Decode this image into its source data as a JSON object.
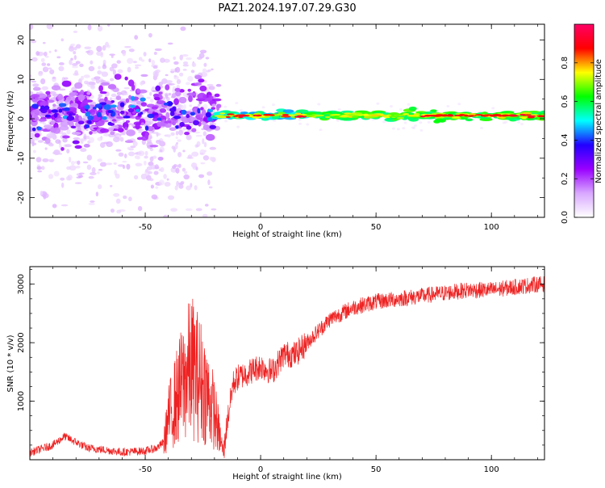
{
  "figure": {
    "title": "PAZ1.2024.197.07.29.G30"
  },
  "chart_data": [
    {
      "type": "heatmap",
      "title": "",
      "xlabel": "Height of straight line (km)",
      "ylabel": "Frequency (Hz)",
      "xlim": [
        -100,
        123
      ],
      "ylim": [
        -25,
        24
      ],
      "xticks": [
        -50,
        0,
        50,
        100
      ],
      "yticks": [
        -20,
        -10,
        0,
        10,
        20
      ],
      "grid": false,
      "colorbar": {
        "label": "Normalized spectral amplitude",
        "range": [
          0,
          1
        ],
        "ticks": [
          0.0,
          0.2,
          0.4,
          0.6,
          0.8
        ],
        "tick_labels": [
          "0.0",
          "0.2",
          "0.4",
          "0.6",
          "0.8"
        ],
        "colors": [
          "#ffffff",
          "#d9a8ff",
          "#9900ff",
          "#2200ff",
          "#00ffff",
          "#00ff00",
          "#ffff00",
          "#ff0000",
          "#ff0066"
        ]
      },
      "regions": [
        {
          "name": "",
          "x": [
            -100,
            -20
          ],
          "frequency_center": [
            -5,
            5
          ],
          "amplitude": [
            0.05,
            0.45
          ],
          "note": "scattered noisy spectral patches"
        },
        {
          "name": "",
          "x": [
            -20,
            123
          ],
          "frequency_center": 0.8,
          "bandwidth": 2.5,
          "amplitude": [
            0.35,
            0.95
          ],
          "note": "narrow persistent carrier near ~1 Hz"
        }
      ]
    },
    {
      "type": "line",
      "title": "",
      "xlabel": "Height of straight line (km)",
      "ylabel": "SNR (10 * v/v)",
      "xlim": [
        -100,
        123
      ],
      "ylim": [
        0,
        3300
      ],
      "xticks": [
        -50,
        0,
        50,
        100
      ],
      "yticks": [
        1000,
        2000,
        3000
      ],
      "grid": false,
      "series": [
        {
          "color": "#ee2222",
          "x": [
            -100,
            -90,
            -85,
            -80,
            -75,
            -70,
            -60,
            -50,
            -45,
            -42,
            -40,
            -35,
            -30,
            -25,
            -20,
            -16,
            -15,
            -12,
            -10,
            -5,
            0,
            5,
            10,
            15,
            20,
            25,
            30,
            40,
            50,
            60,
            70,
            80,
            90,
            100,
            110,
            120,
            123
          ],
          "y": [
            120,
            250,
            400,
            300,
            200,
            180,
            130,
            150,
            200,
            300,
            700,
            1200,
            1600,
            1300,
            800,
            100,
            500,
            1300,
            1400,
            1500,
            1600,
            1500,
            1800,
            1800,
            2000,
            2200,
            2400,
            2600,
            2700,
            2750,
            2800,
            2850,
            2900,
            2900,
            2950,
            3000,
            3000
          ]
        }
      ]
    }
  ]
}
